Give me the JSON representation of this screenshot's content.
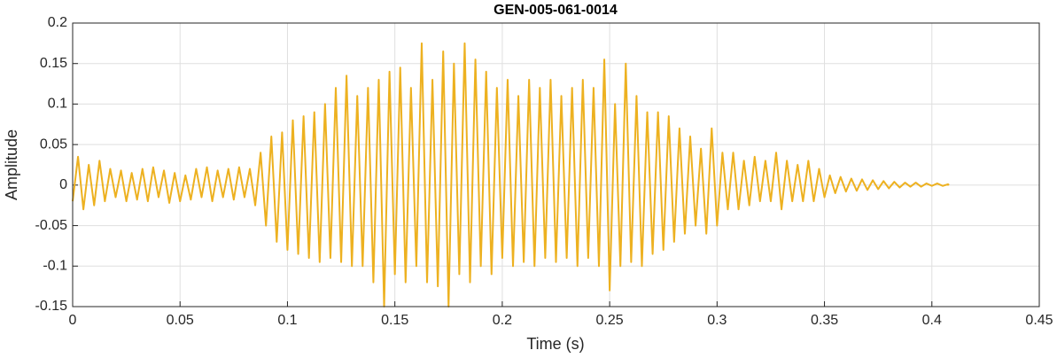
{
  "chart_data": {
    "type": "line",
    "title": "GEN-005-061-0014",
    "x_label": "Time (s)",
    "y_label": "Amplitude",
    "xlim": [
      0,
      0.45
    ],
    "xticks": [
      0,
      0.05,
      0.1,
      0.15,
      0.2,
      0.25,
      0.3,
      0.35,
      0.4,
      0.45
    ],
    "ylim": [
      -0.15,
      0.2
    ],
    "yticks": [
      -0.15,
      -0.1,
      -0.05,
      0,
      0.05,
      0.1,
      0.15,
      0.2
    ],
    "grid": true,
    "series": [
      {
        "name": "Amplitude",
        "color": "#EDB120",
        "x": [
          0,
          0.0025,
          0.005,
          0.0075,
          0.01,
          0.0125,
          0.015,
          0.0175,
          0.02,
          0.0225,
          0.025,
          0.0275,
          0.03,
          0.0325,
          0.035,
          0.0375,
          0.04,
          0.0425,
          0.045,
          0.0475,
          0.05,
          0.0525,
          0.055,
          0.0575,
          0.06,
          0.0625,
          0.065,
          0.0675,
          0.07,
          0.0725,
          0.075,
          0.0775,
          0.08,
          0.0825,
          0.085,
          0.0875,
          0.09,
          0.0925,
          0.095,
          0.0975,
          0.1,
          0.1025,
          0.105,
          0.1075,
          0.11,
          0.1125,
          0.115,
          0.1175,
          0.12,
          0.1225,
          0.125,
          0.1275,
          0.13,
          0.1325,
          0.135,
          0.1375,
          0.14,
          0.1425,
          0.145,
          0.1475,
          0.15,
          0.1525,
          0.155,
          0.1575,
          0.16,
          0.1625,
          0.165,
          0.1675,
          0.17,
          0.1725,
          0.175,
          0.1775,
          0.18,
          0.1825,
          0.185,
          0.1875,
          0.19,
          0.1925,
          0.195,
          0.1975,
          0.2,
          0.2025,
          0.205,
          0.2075,
          0.21,
          0.2125,
          0.215,
          0.2175,
          0.22,
          0.2225,
          0.225,
          0.2275,
          0.23,
          0.2325,
          0.235,
          0.2375,
          0.24,
          0.2425,
          0.245,
          0.2475,
          0.25,
          0.2525,
          0.255,
          0.2575,
          0.26,
          0.2625,
          0.265,
          0.2675,
          0.27,
          0.2725,
          0.275,
          0.2775,
          0.28,
          0.2825,
          0.285,
          0.2875,
          0.29,
          0.2925,
          0.295,
          0.2975,
          0.3,
          0.3025,
          0.305,
          0.3075,
          0.31,
          0.3125,
          0.315,
          0.3175,
          0.32,
          0.3225,
          0.325,
          0.3275,
          0.33,
          0.3325,
          0.335,
          0.3375,
          0.34,
          0.3425,
          0.345,
          0.3475,
          0.35,
          0.3525,
          0.355,
          0.3575,
          0.36,
          0.3625,
          0.365,
          0.3675,
          0.37,
          0.3725,
          0.375,
          0.3775,
          0.38,
          0.3825,
          0.385,
          0.3875,
          0.39,
          0.3925,
          0.395,
          0.3975,
          0.4,
          0.4025,
          0.405,
          0.4075,
          0.408
        ],
        "values": [
          -0.02,
          0.035,
          -0.03,
          0.025,
          -0.025,
          0.03,
          -0.02,
          0.02,
          -0.015,
          0.018,
          -0.02,
          0.015,
          -0.018,
          0.02,
          -0.02,
          0.022,
          -0.015,
          0.018,
          -0.022,
          0.015,
          -0.02,
          0.012,
          -0.018,
          0.02,
          -0.015,
          0.022,
          -0.02,
          0.018,
          -0.015,
          0.02,
          -0.018,
          0.022,
          -0.015,
          0.02,
          -0.025,
          0.04,
          -0.05,
          0.06,
          -0.07,
          0.065,
          -0.08,
          0.08,
          -0.085,
          0.085,
          -0.09,
          0.09,
          -0.095,
          0.1,
          -0.09,
          0.12,
          -0.095,
          0.135,
          -0.1,
          0.11,
          -0.1,
          0.12,
          -0.12,
          0.13,
          -0.15,
          0.14,
          -0.11,
          0.145,
          -0.12,
          0.12,
          -0.1,
          0.175,
          -0.12,
          0.13,
          -0.125,
          0.165,
          -0.15,
          0.15,
          -0.11,
          0.175,
          -0.12,
          0.155,
          -0.1,
          0.14,
          -0.11,
          0.12,
          -0.09,
          0.13,
          -0.1,
          0.11,
          -0.095,
          0.13,
          -0.1,
          0.12,
          -0.09,
          0.13,
          -0.095,
          0.11,
          -0.09,
          0.12,
          -0.1,
          0.13,
          -0.09,
          0.12,
          -0.1,
          0.155,
          -0.13,
          0.1,
          -0.1,
          0.15,
          -0.095,
          0.11,
          -0.1,
          0.09,
          -0.085,
          0.09,
          -0.08,
          0.085,
          -0.07,
          0.07,
          -0.06,
          0.06,
          -0.05,
          0.045,
          -0.06,
          0.07,
          -0.05,
          0.04,
          -0.03,
          0.04,
          -0.03,
          0.03,
          -0.025,
          0.035,
          -0.02,
          0.03,
          -0.02,
          0.04,
          -0.03,
          0.03,
          -0.02,
          0.025,
          -0.02,
          0.03,
          -0.02,
          0.02,
          -0.015,
          0.012,
          -0.01,
          0.01,
          -0.008,
          0.008,
          -0.007,
          0.007,
          -0.006,
          0.006,
          -0.005,
          0.005,
          -0.004,
          0.004,
          -0.003,
          0.003,
          -0.002,
          0.003,
          -0.002,
          0.002,
          -0.001,
          0.002,
          -0.001,
          0.001,
          0
        ]
      }
    ]
  }
}
